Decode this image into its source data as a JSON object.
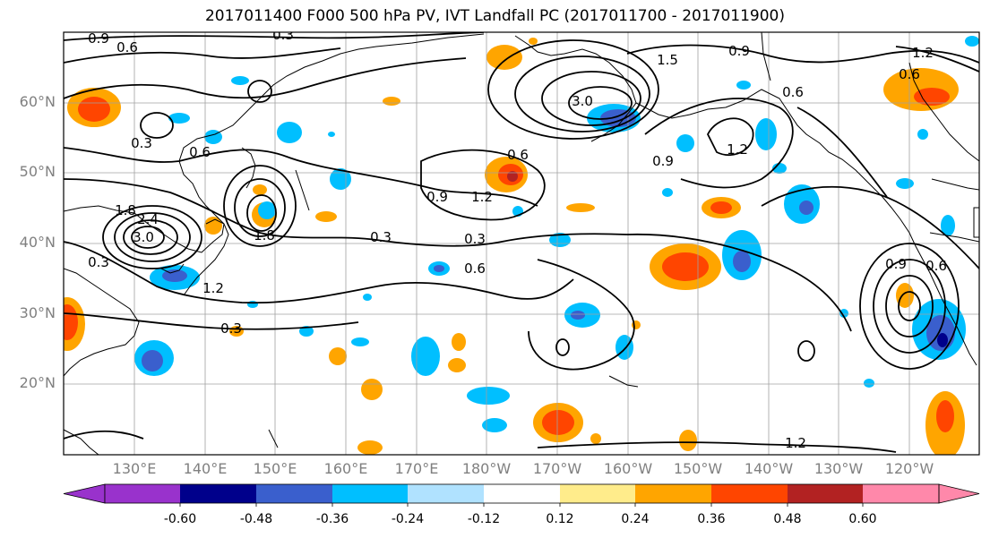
{
  "title": "2017011400 F000 500 hPa PV, IVT Landfall PC (2017011700 - 2017011900)",
  "map": {
    "lat_labels": [
      "60°N",
      "50°N",
      "40°N",
      "30°N",
      "20°N"
    ],
    "lon_labels": [
      "130°E",
      "140°E",
      "150°E",
      "160°E",
      "170°E",
      "180°W",
      "170°W",
      "160°W",
      "150°W",
      "140°W",
      "130°W",
      "120°W"
    ],
    "contour_labels": [
      "0.9",
      "0.6",
      "0.3",
      "0.3",
      "0.6",
      "1.8",
      "2.4",
      "3.0",
      "1.2",
      "1.2",
      "0.9",
      "1.2",
      "0.3",
      "0.3",
      "0.6",
      "0.3",
      "1.8",
      "3.0",
      "1.5",
      "0.9",
      "0.6",
      "1.2",
      "0.9",
      "0.6",
      "0.9",
      "0.6",
      "0.3",
      "1.2",
      "0.6"
    ],
    "colors": {
      "coast": "#000000",
      "grid": "#a0a0a0",
      "contour": "#000000"
    }
  },
  "colorbar": {
    "tick_labels": [
      "-0.60",
      "-0.48",
      "-0.36",
      "-0.24",
      "-0.12",
      "0.12",
      "0.24",
      "0.36",
      "0.48",
      "0.60"
    ],
    "colors": [
      "#9932cc",
      "#00008b",
      "#3a5fcd",
      "#00bfff",
      "#b0e2ff",
      "#ffffff",
      "#ffec8b",
      "#ffa500",
      "#ff4500",
      "#b22222",
      "#ff88aa"
    ]
  }
}
